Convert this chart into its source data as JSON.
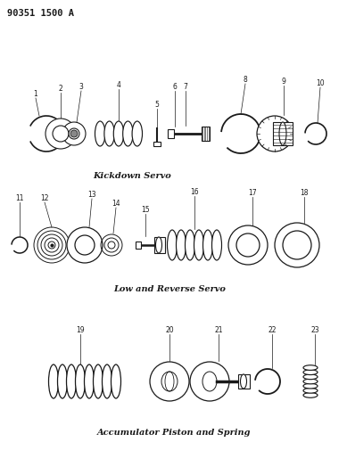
{
  "title": "90351 1500 A",
  "background_color": "#ffffff",
  "line_color": "#1a1a1a",
  "section1_label": "Kickdown Servo",
  "section2_label": "Low and Reverse Servo",
  "section3_label": "Accumulator Piston and Spring",
  "fig_width": 3.89,
  "fig_height": 5.33,
  "dpi": 100
}
